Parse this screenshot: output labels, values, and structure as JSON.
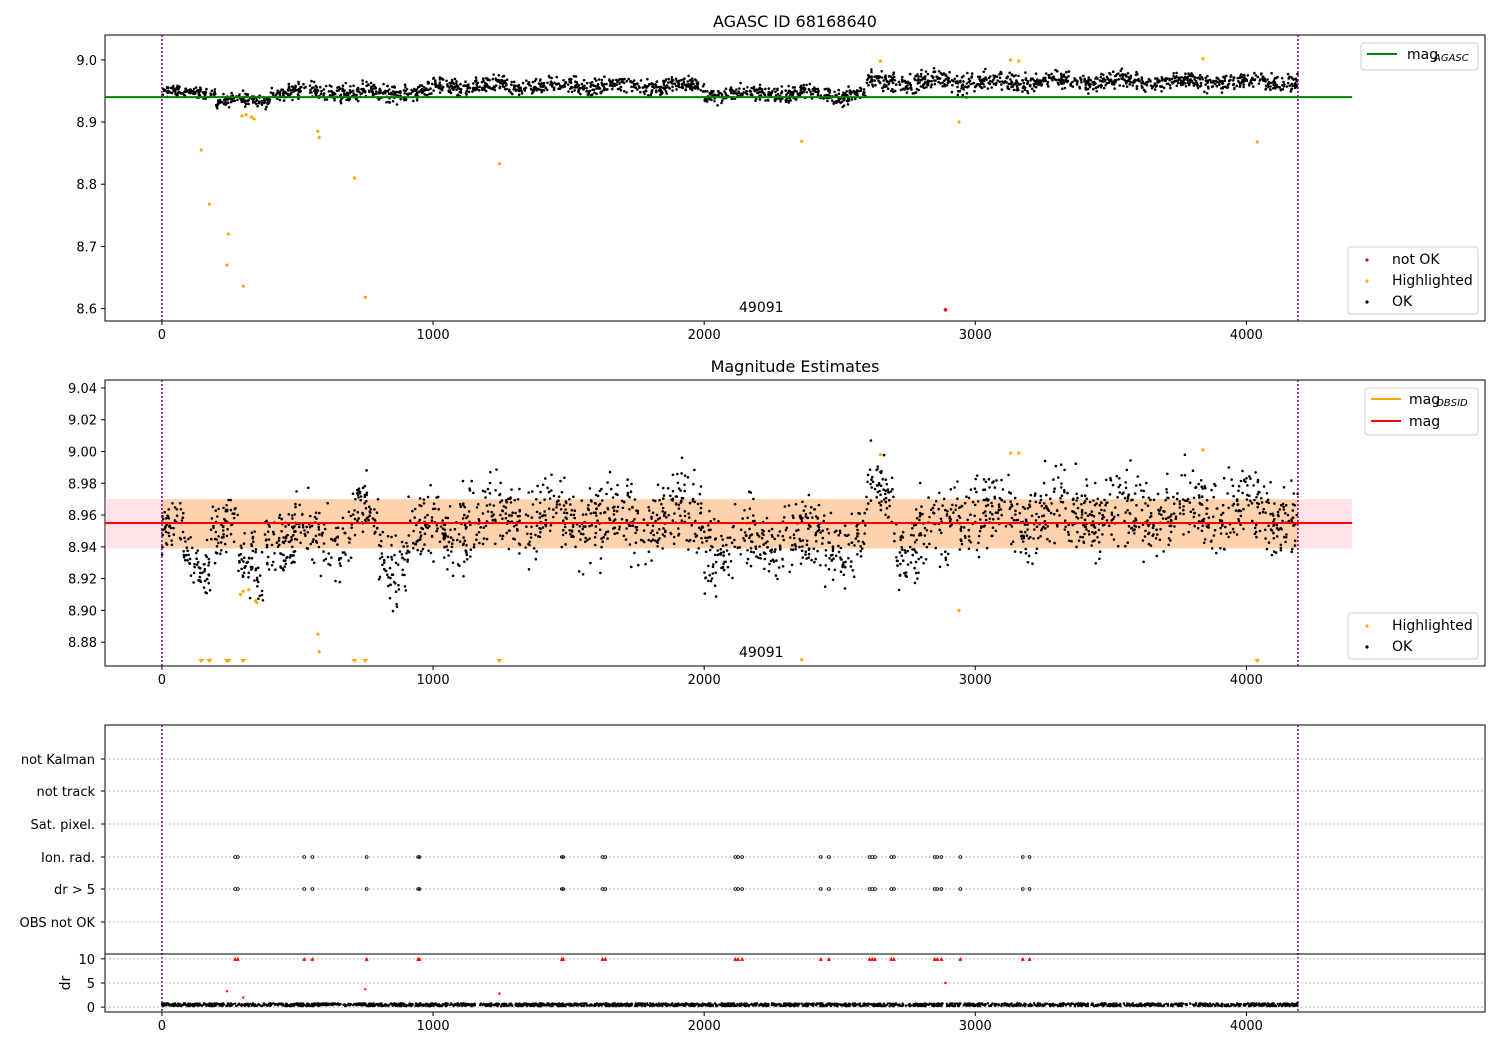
{
  "chart_data": [
    {
      "type": "scatter",
      "title": "AGASC ID 68168640",
      "xlim": [
        -210,
        4880
      ],
      "ylim": [
        8.58,
        9.04
      ],
      "xticks": [
        0,
        1000,
        2000,
        3000,
        4000
      ],
      "yticks": [
        8.6,
        8.7,
        8.8,
        8.9,
        9.0
      ],
      "ytick_labels": [
        "8.6",
        "8.7",
        "8.8",
        "8.9",
        "9.0"
      ],
      "vlines": [
        0,
        4190
      ],
      "obsid_label": "49091",
      "obsid_label_x": 2100,
      "mag_agasc": 8.94,
      "mag_agasc_range": [
        -210,
        4390
      ],
      "ok_band_segments": [
        {
          "x": [
            0,
            200
          ],
          "base": 8.948,
          "amp": 0.006
        },
        {
          "x": [
            200,
            400
          ],
          "base": 8.935,
          "amp": 0.008
        },
        {
          "x": [
            400,
            1000
          ],
          "base": 8.948,
          "amp": 0.01
        },
        {
          "x": [
            1000,
            2000
          ],
          "base": 8.958,
          "amp": 0.01
        },
        {
          "x": [
            2000,
            2600
          ],
          "base": 8.945,
          "amp": 0.01
        },
        {
          "x": [
            2600,
            3200
          ],
          "base": 8.965,
          "amp": 0.012
        },
        {
          "x": [
            3200,
            4190
          ],
          "base": 8.965,
          "amp": 0.01
        }
      ],
      "highlighted": [
        {
          "x": 145,
          "y": 8.855
        },
        {
          "x": 175,
          "y": 8.768
        },
        {
          "x": 240,
          "y": 8.67
        },
        {
          "x": 245,
          "y": 8.72
        },
        {
          "x": 300,
          "y": 8.636
        },
        {
          "x": 295,
          "y": 8.91
        },
        {
          "x": 310,
          "y": 8.912
        },
        {
          "x": 330,
          "y": 8.908
        },
        {
          "x": 340,
          "y": 8.905
        },
        {
          "x": 575,
          "y": 8.885
        },
        {
          "x": 580,
          "y": 8.875
        },
        {
          "x": 710,
          "y": 8.81
        },
        {
          "x": 750,
          "y": 8.618
        },
        {
          "x": 1245,
          "y": 8.833
        },
        {
          "x": 2360,
          "y": 8.869
        },
        {
          "x": 2940,
          "y": 8.9
        },
        {
          "x": 4040,
          "y": 8.868
        },
        {
          "x": 2650,
          "y": 8.998
        },
        {
          "x": 3130,
          "y": 9.0
        },
        {
          "x": 3160,
          "y": 8.998
        },
        {
          "x": 3840,
          "y": 9.002
        }
      ],
      "not_ok": [
        {
          "x": 2890,
          "y": 8.598
        }
      ],
      "legend_upper": [
        {
          "label": "mag",
          "sub": "AGASC",
          "color": "#008000"
        }
      ],
      "legend_lower": [
        {
          "label": "not OK",
          "color": "#ff0000"
        },
        {
          "label": "Highlighted",
          "color": "#ffa500"
        },
        {
          "label": "OK",
          "color": "#000000"
        }
      ]
    },
    {
      "type": "scatter",
      "title": "Magnitude Estimates",
      "xlim": [
        -210,
        4880
      ],
      "ylim": [
        8.865,
        9.045
      ],
      "xticks": [
        0,
        1000,
        2000,
        3000,
        4000
      ],
      "yticks": [
        8.88,
        8.9,
        8.92,
        8.94,
        8.96,
        8.98,
        9.0,
        9.02,
        9.04
      ],
      "ytick_labels": [
        "8.88",
        "8.90",
        "8.92",
        "8.94",
        "8.96",
        "8.98",
        "9.00",
        "9.02",
        "9.04"
      ],
      "vlines": [
        0,
        4190
      ],
      "obsid_label": "49091",
      "obsid_label_x": 2100,
      "mag": 8.955,
      "mag_range": [
        -210,
        4390
      ],
      "mag_band": [
        8.939,
        8.97
      ],
      "mag_obsid_band": [
        8.939,
        8.97
      ],
      "mag_obsid_band_range": [
        0,
        4190
      ],
      "ok_band_segments": [
        {
          "x": [
            0,
            80
          ],
          "base": 8.95,
          "amp": 0.012
        },
        {
          "x": [
            80,
            180
          ],
          "base": 8.93,
          "amp": 0.012
        },
        {
          "x": [
            180,
            280
          ],
          "base": 8.952,
          "amp": 0.015
        },
        {
          "x": [
            280,
            380
          ],
          "base": 8.928,
          "amp": 0.015
        },
        {
          "x": [
            380,
            700
          ],
          "base": 8.945,
          "amp": 0.016
        },
        {
          "x": [
            700,
            800
          ],
          "base": 8.958,
          "amp": 0.016
        },
        {
          "x": [
            800,
            900
          ],
          "base": 8.932,
          "amp": 0.016
        },
        {
          "x": [
            900,
            1100
          ],
          "base": 8.948,
          "amp": 0.016
        },
        {
          "x": [
            1100,
            2000
          ],
          "base": 8.958,
          "amp": 0.018
        },
        {
          "x": [
            2000,
            2200
          ],
          "base": 8.94,
          "amp": 0.018
        },
        {
          "x": [
            2200,
            2600
          ],
          "base": 8.945,
          "amp": 0.018
        },
        {
          "x": [
            2600,
            2700
          ],
          "base": 8.975,
          "amp": 0.014
        },
        {
          "x": [
            2700,
            2900
          ],
          "base": 8.945,
          "amp": 0.018
        },
        {
          "x": [
            2900,
            3200
          ],
          "base": 8.962,
          "amp": 0.018
        },
        {
          "x": [
            3200,
            4190
          ],
          "base": 8.962,
          "amp": 0.018
        }
      ],
      "highlighted": [
        {
          "x": 290,
          "y": 8.91
        },
        {
          "x": 300,
          "y": 8.912
        },
        {
          "x": 320,
          "y": 8.913
        },
        {
          "x": 345,
          "y": 8.906
        },
        {
          "x": 350,
          "y": 8.905
        },
        {
          "x": 575,
          "y": 8.885
        },
        {
          "x": 580,
          "y": 8.874
        },
        {
          "x": 2360,
          "y": 8.869
        },
        {
          "x": 2940,
          "y": 8.9
        },
        {
          "x": 2650,
          "y": 8.998
        },
        {
          "x": 3130,
          "y": 8.999
        },
        {
          "x": 3160,
          "y": 8.999
        },
        {
          "x": 3840,
          "y": 9.001
        }
      ],
      "highlighted_offscale_x": [
        145,
        175,
        240,
        245,
        300,
        710,
        750,
        1245,
        4040
      ],
      "legend_upper": [
        {
          "label": "mag",
          "sub": "OBSID",
          "color": "#ffa500"
        },
        {
          "label": "mag",
          "sub": "",
          "color": "#ff0000"
        }
      ],
      "legend_lower": [
        {
          "label": "Highlighted",
          "color": "#ffa500"
        },
        {
          "label": "OK",
          "color": "#000000"
        }
      ]
    },
    {
      "type": "scatter",
      "title": "",
      "xlim": [
        -210,
        4880
      ],
      "xticks": [
        0,
        1000,
        2000,
        3000,
        4000
      ],
      "vlines": [
        0,
        4190
      ],
      "flag_labels": [
        "not Kalman",
        "not track",
        "Sat. pixel.",
        "Ion. rad.",
        "dr > 5",
        "OBS not OK"
      ],
      "flag_events": {
        "Ion. rad.": [
          270,
          280,
          525,
          555,
          755,
          945,
          950,
          1475,
          1480,
          1625,
          1635,
          2115,
          2125,
          2140,
          2430,
          2460,
          2610,
          2620,
          2630,
          2690,
          2700,
          2850,
          2860,
          2875,
          2945,
          3175,
          3200
        ],
        "dr > 5": [
          270,
          280,
          525,
          555,
          755,
          945,
          950,
          1475,
          1480,
          1625,
          1635,
          2115,
          2125,
          2140,
          2430,
          2460,
          2610,
          2620,
          2630,
          2690,
          2700,
          2850,
          2860,
          2875,
          2945,
          3175,
          3200
        ]
      },
      "dr_ylabel": "dr",
      "dr_yticks": [
        0,
        5,
        10
      ],
      "dr_ylim": [
        -1,
        11
      ],
      "dr_clipped_x": [
        270,
        280,
        525,
        555,
        755,
        945,
        950,
        1475,
        1480,
        1625,
        1635,
        2115,
        2125,
        2140,
        2430,
        2460,
        2610,
        2620,
        2630,
        2690,
        2700,
        2850,
        2860,
        2875,
        2945,
        3175,
        3200
      ],
      "dr_outliers": [
        {
          "x": 240,
          "y": 3.3
        },
        {
          "x": 300,
          "y": 2.0
        },
        {
          "x": 750,
          "y": 3.7
        },
        {
          "x": 1245,
          "y": 2.8
        },
        {
          "x": 2890,
          "y": 5.0
        }
      ],
      "dr_base": 0.5,
      "dr_amp": 0.3
    }
  ]
}
